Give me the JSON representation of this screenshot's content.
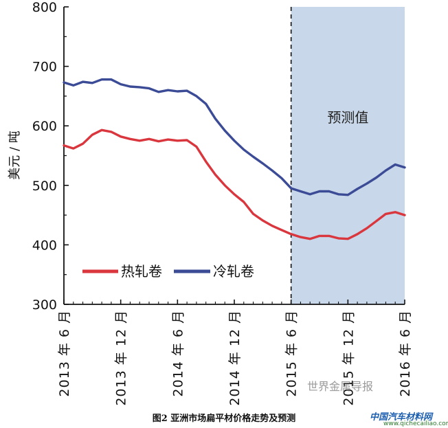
{
  "chart_data": {
    "type": "line",
    "ylabel": "美元 / 吨",
    "ylim": [
      300,
      800
    ],
    "y_ticks": [
      "300",
      "400",
      "500",
      "600",
      "700",
      "800"
    ],
    "x_ticks": [
      "2013 年 6 月",
      "2013 年 12 月",
      "2014 年 6 月",
      "2014 年 12 月",
      "2015 年 6 月",
      "2015 年 12 月",
      "2016 年 6 月"
    ],
    "x_range": [
      0,
      36
    ],
    "forecast_start": 24,
    "forecast_end": 36,
    "forecast_label": "预测值",
    "legend_position": "lower-left",
    "grid": false,
    "series": [
      {
        "name": "热轧卷",
        "color": "#d9363e",
        "x": [
          0,
          1,
          2,
          3,
          4,
          5,
          6,
          7,
          8,
          9,
          10,
          11,
          12,
          13,
          14,
          15,
          16,
          17,
          18,
          19,
          20,
          21,
          22,
          23,
          24,
          25,
          26,
          27,
          28,
          29,
          30,
          31,
          32,
          33,
          34,
          35,
          36
        ],
        "values": [
          567,
          562,
          570,
          585,
          593,
          590,
          582,
          578,
          575,
          578,
          574,
          577,
          575,
          576,
          565,
          540,
          518,
          500,
          485,
          472,
          452,
          441,
          432,
          425,
          418,
          413,
          410,
          415,
          415,
          411,
          410,
          418,
          428,
          440,
          452,
          455,
          450
        ]
      },
      {
        "name": "冷轧卷",
        "color": "#3b4b96",
        "x": [
          0,
          1,
          2,
          3,
          4,
          5,
          6,
          7,
          8,
          9,
          10,
          11,
          12,
          13,
          14,
          15,
          16,
          17,
          18,
          19,
          20,
          21,
          22,
          23,
          24,
          25,
          26,
          27,
          28,
          29,
          30,
          31,
          32,
          33,
          34,
          35,
          36
        ],
        "values": [
          673,
          668,
          674,
          672,
          678,
          678,
          670,
          666,
          665,
          663,
          657,
          660,
          658,
          659,
          650,
          637,
          612,
          592,
          575,
          560,
          548,
          537,
          525,
          512,
          495,
          490,
          485,
          490,
          490,
          485,
          484,
          494,
          503,
          513,
          525,
          535,
          530
        ]
      }
    ]
  },
  "caption": "图2  亚洲市场扁平材价格走势及预测",
  "watermarks": {
    "left": "世界金属导报",
    "right_main": "中国汽车材料网",
    "right_sub": "www.qichecailiao.com"
  }
}
